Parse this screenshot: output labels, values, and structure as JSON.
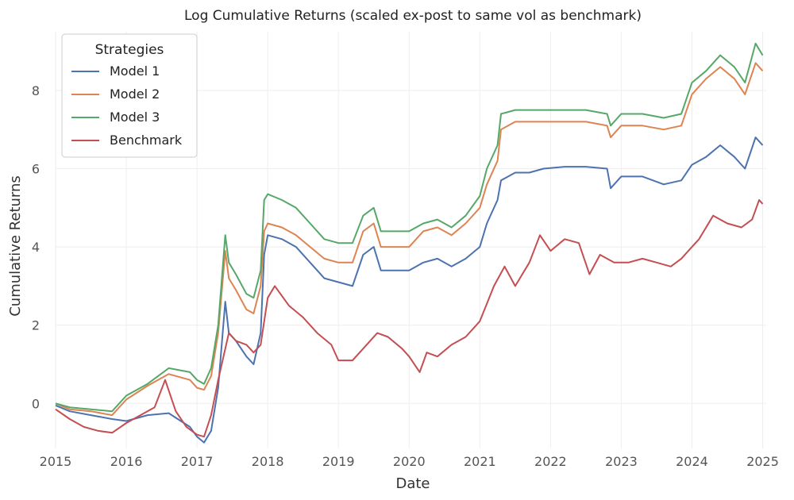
{
  "chart_data": {
    "type": "line",
    "title": "Log Cumulative Returns (scaled ex-post to same vol as benchmark)",
    "xlabel": "Date",
    "ylabel": "Cumulative Returns",
    "xlim": [
      2015.0,
      2025.05
    ],
    "ylim": [
      -1.15,
      9.5
    ],
    "x_ticks": [
      2015,
      2016,
      2017,
      2018,
      2019,
      2020,
      2021,
      2022,
      2023,
      2024,
      2025
    ],
    "x_tick_labels": [
      "2015",
      "2016",
      "2017",
      "2018",
      "2019",
      "2020",
      "2021",
      "2022",
      "2023",
      "2024",
      "2025"
    ],
    "y_ticks": [
      0,
      2,
      4,
      6,
      8
    ],
    "y_tick_labels": [
      "0",
      "2",
      "4",
      "6",
      "8"
    ],
    "grid": true,
    "legend": {
      "title": "Strategies",
      "position": "top-left"
    },
    "series": [
      {
        "name": "Model 1",
        "color": "#4c72b0",
        "x": [
          2015.0,
          2015.2,
          2015.5,
          2015.8,
          2016.0,
          2016.3,
          2016.6,
          2016.9,
          2017.0,
          2017.1,
          2017.2,
          2017.3,
          2017.4,
          2017.45,
          2017.55,
          2017.7,
          2017.8,
          2017.9,
          2017.95,
          2018.0,
          2018.2,
          2018.4,
          2018.6,
          2018.8,
          2019.0,
          2019.2,
          2019.35,
          2019.5,
          2019.6,
          2019.8,
          2020.0,
          2020.2,
          2020.4,
          2020.6,
          2020.8,
          2021.0,
          2021.1,
          2021.25,
          2021.3,
          2021.5,
          2021.7,
          2021.9,
          2022.2,
          2022.5,
          2022.8,
          2022.85,
          2023.0,
          2023.3,
          2023.6,
          2023.85,
          2024.0,
          2024.2,
          2024.4,
          2024.6,
          2024.75,
          2024.9,
          2025.0
        ],
        "values": [
          -0.05,
          -0.2,
          -0.3,
          -0.4,
          -0.45,
          -0.3,
          -0.25,
          -0.6,
          -0.85,
          -1.0,
          -0.7,
          0.4,
          2.6,
          1.8,
          1.6,
          1.2,
          1.0,
          1.8,
          3.8,
          4.3,
          4.2,
          4.0,
          3.6,
          3.2,
          3.1,
          3.0,
          3.8,
          4.0,
          3.4,
          3.4,
          3.4,
          3.6,
          3.7,
          3.5,
          3.7,
          4.0,
          4.6,
          5.2,
          5.7,
          5.9,
          5.9,
          6.0,
          6.05,
          6.05,
          6.0,
          5.5,
          5.8,
          5.8,
          5.6,
          5.7,
          6.1,
          6.3,
          6.6,
          6.3,
          6.0,
          6.8,
          6.6
        ]
      },
      {
        "name": "Model 2",
        "color": "#dd8452",
        "x": [
          2015.0,
          2015.2,
          2015.5,
          2015.8,
          2016.0,
          2016.3,
          2016.6,
          2016.9,
          2017.0,
          2017.1,
          2017.2,
          2017.3,
          2017.4,
          2017.45,
          2017.55,
          2017.7,
          2017.8,
          2017.9,
          2017.95,
          2018.0,
          2018.2,
          2018.4,
          2018.6,
          2018.8,
          2019.0,
          2019.2,
          2019.35,
          2019.5,
          2019.6,
          2019.8,
          2020.0,
          2020.2,
          2020.4,
          2020.6,
          2020.8,
          2021.0,
          2021.1,
          2021.25,
          2021.3,
          2021.5,
          2021.7,
          2021.9,
          2022.2,
          2022.5,
          2022.8,
          2022.85,
          2023.0,
          2023.3,
          2023.6,
          2023.85,
          2024.0,
          2024.2,
          2024.4,
          2024.6,
          2024.75,
          2024.9,
          2025.0
        ],
        "values": [
          0.0,
          -0.15,
          -0.2,
          -0.3,
          0.1,
          0.45,
          0.75,
          0.6,
          0.4,
          0.35,
          0.7,
          1.8,
          3.9,
          3.2,
          2.9,
          2.4,
          2.3,
          3.0,
          4.4,
          4.6,
          4.5,
          4.3,
          4.0,
          3.7,
          3.6,
          3.6,
          4.4,
          4.6,
          4.0,
          4.0,
          4.0,
          4.4,
          4.5,
          4.3,
          4.6,
          5.0,
          5.6,
          6.2,
          7.0,
          7.2,
          7.2,
          7.2,
          7.2,
          7.2,
          7.1,
          6.8,
          7.1,
          7.1,
          7.0,
          7.1,
          7.9,
          8.3,
          8.6,
          8.3,
          7.9,
          8.7,
          8.5
        ]
      },
      {
        "name": "Model 3",
        "color": "#55a868",
        "x": [
          2015.0,
          2015.2,
          2015.5,
          2015.8,
          2016.0,
          2016.3,
          2016.6,
          2016.9,
          2017.0,
          2017.1,
          2017.2,
          2017.3,
          2017.4,
          2017.45,
          2017.55,
          2017.7,
          2017.8,
          2017.9,
          2017.95,
          2018.0,
          2018.2,
          2018.4,
          2018.6,
          2018.8,
          2019.0,
          2019.2,
          2019.35,
          2019.5,
          2019.6,
          2019.8,
          2020.0,
          2020.2,
          2020.4,
          2020.6,
          2020.8,
          2021.0,
          2021.1,
          2021.25,
          2021.3,
          2021.5,
          2021.7,
          2021.9,
          2022.2,
          2022.5,
          2022.8,
          2022.85,
          2023.0,
          2023.3,
          2023.6,
          2023.85,
          2024.0,
          2024.2,
          2024.4,
          2024.6,
          2024.75,
          2024.9,
          2025.0
        ],
        "values": [
          0.0,
          -0.1,
          -0.15,
          -0.2,
          0.2,
          0.5,
          0.9,
          0.8,
          0.6,
          0.5,
          0.9,
          2.0,
          4.3,
          3.6,
          3.3,
          2.8,
          2.7,
          3.4,
          5.2,
          5.35,
          5.2,
          5.0,
          4.6,
          4.2,
          4.1,
          4.1,
          4.8,
          5.0,
          4.4,
          4.4,
          4.4,
          4.6,
          4.7,
          4.5,
          4.8,
          5.3,
          6.0,
          6.6,
          7.4,
          7.5,
          7.5,
          7.5,
          7.5,
          7.5,
          7.4,
          7.1,
          7.4,
          7.4,
          7.3,
          7.4,
          8.2,
          8.5,
          8.9,
          8.6,
          8.2,
          9.2,
          8.9
        ]
      },
      {
        "name": "Benchmark",
        "color": "#c44e52",
        "x": [
          2015.0,
          2015.2,
          2015.4,
          2015.6,
          2015.8,
          2016.0,
          2016.2,
          2016.4,
          2016.55,
          2016.7,
          2016.85,
          2017.0,
          2017.1,
          2017.2,
          2017.3,
          2017.45,
          2017.55,
          2017.7,
          2017.8,
          2017.9,
          2018.0,
          2018.1,
          2018.3,
          2018.5,
          2018.7,
          2018.9,
          2019.0,
          2019.2,
          2019.4,
          2019.55,
          2019.7,
          2019.9,
          2020.0,
          2020.15,
          2020.25,
          2020.4,
          2020.6,
          2020.8,
          2021.0,
          2021.2,
          2021.35,
          2021.5,
          2021.7,
          2021.85,
          2022.0,
          2022.2,
          2022.4,
          2022.55,
          2022.7,
          2022.9,
          2023.1,
          2023.3,
          2023.5,
          2023.7,
          2023.85,
          2024.0,
          2024.1,
          2024.3,
          2024.5,
          2024.7,
          2024.85,
          2024.95,
          2025.0
        ],
        "values": [
          -0.15,
          -0.4,
          -0.6,
          -0.7,
          -0.75,
          -0.5,
          -0.3,
          -0.1,
          0.6,
          -0.2,
          -0.6,
          -0.8,
          -0.85,
          -0.3,
          0.6,
          1.8,
          1.6,
          1.5,
          1.3,
          1.5,
          2.7,
          3.0,
          2.5,
          2.2,
          1.8,
          1.5,
          1.1,
          1.1,
          1.5,
          1.8,
          1.7,
          1.4,
          1.2,
          0.8,
          1.3,
          1.2,
          1.5,
          1.7,
          2.1,
          3.0,
          3.5,
          3.0,
          3.6,
          4.3,
          3.9,
          4.2,
          4.1,
          3.3,
          3.8,
          3.6,
          3.6,
          3.7,
          3.6,
          3.5,
          3.7,
          4.0,
          4.2,
          4.8,
          4.6,
          4.5,
          4.7,
          5.2,
          5.1
        ]
      }
    ]
  }
}
